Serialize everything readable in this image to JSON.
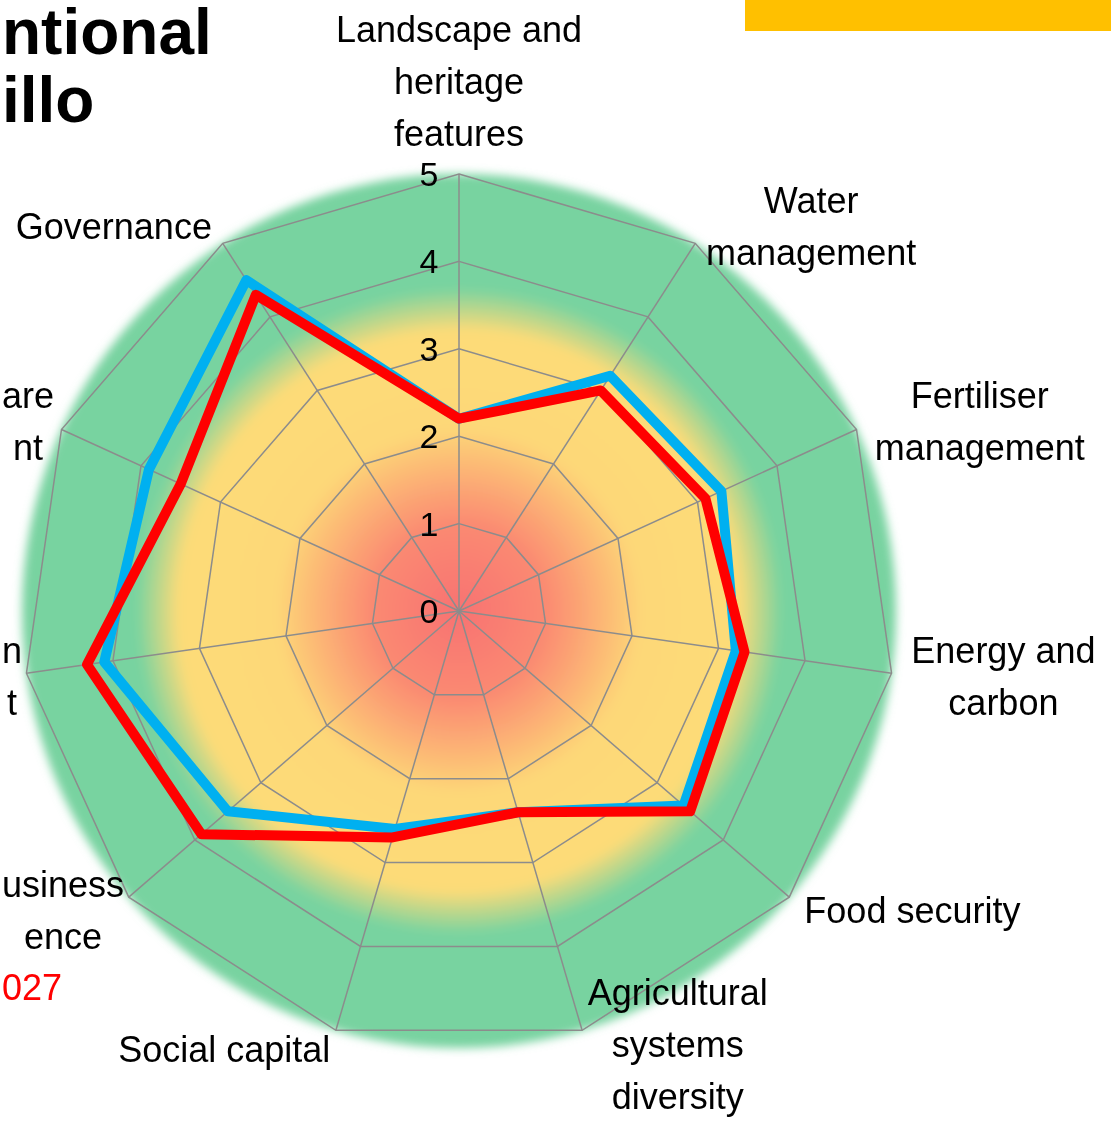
{
  "chart_data": {
    "type": "radar",
    "title": "ntional\nillo",
    "categories": [
      "Landscape and\nheritage\nfeatures",
      "Water\nmanagement",
      "Fertiliser\nmanagement",
      "Energy and\ncarbon",
      "Food security",
      "Agricultural\nsystems\ndiversity",
      "Social capital",
      "usiness\nence",
      "n\nt",
      "are\nnt",
      "Governance"
    ],
    "series": [
      {
        "color": "#00b0f0",
        "values": [
          2.2,
          3.2,
          3.3,
          3.2,
          3.4,
          2.4,
          2.6,
          3.5,
          4.1,
          3.9,
          4.5
        ]
      },
      {
        "name": "027",
        "color": "#ff0000",
        "values": [
          2.2,
          3.0,
          3.1,
          3.3,
          3.5,
          2.4,
          2.7,
          3.9,
          4.3,
          3.5,
          4.3
        ]
      }
    ],
    "ylim": [
      0,
      5
    ],
    "yticks": [
      0,
      1,
      2,
      3,
      4,
      5
    ],
    "grid": true
  }
}
